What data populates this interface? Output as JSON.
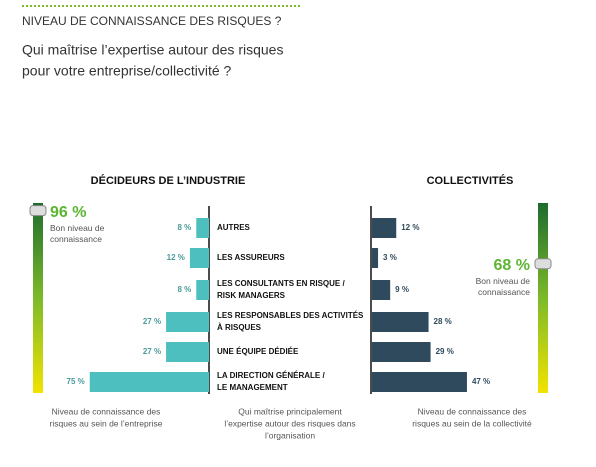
{
  "header": {
    "title": "NIVEAU DE CONNAISSANCE DES RISQUES ?",
    "subtitle": [
      "Qui maîtrise l’expertise autour des risques",
      "pour votre entreprise/collectivité ?"
    ]
  },
  "chart_data": {
    "type": "bar",
    "categories": [
      [
        "AUTRES"
      ],
      [
        "LES ASSUREURS"
      ],
      [
        "LES CONSULTANTS EN RISQUE /",
        "RISK MANAGERS"
      ],
      [
        "LES RESPONSABLES DES ACTIVITÉS",
        "À RISQUES"
      ],
      [
        "UNE ÉQUIPE DÉDIÉE"
      ],
      [
        "LA DIRECTION GÉNÉRALE /",
        "LE MANAGEMENT"
      ]
    ],
    "series": [
      {
        "name": "DÉCIDEURS DE L’INDUSTRIE",
        "color": "#4dbfbf",
        "values": [
          8,
          12,
          8,
          27,
          27,
          75
        ],
        "value_labels": [
          "8 %",
          "12 %",
          "8 %",
          "27 %",
          "27 %",
          "75 %"
        ]
      },
      {
        "name": "COLLECTIVITÉS",
        "color": "#2e4a5c",
        "values": [
          12,
          3,
          9,
          28,
          29,
          47
        ],
        "value_labels": [
          "12 %",
          "3 %",
          "9 %",
          "28 %",
          "29 %",
          "47 %"
        ]
      }
    ],
    "gauges": [
      {
        "value": 96,
        "value_label": "96 %",
        "text": [
          "Bon niveau de",
          "connaissance"
        ]
      },
      {
        "value": 68,
        "value_label": "68 %",
        "text": [
          "Bon niveau de",
          "connaissance"
        ]
      }
    ],
    "notes": [
      [
        "Niveau de connaissance des",
        "risques au sein de l’entreprise"
      ],
      [
        "Qui maîtrise principalement",
        "l’expertise autour des risques dans",
        "l’organisation"
      ],
      [
        "Niveau de connaissance des",
        "risques au sein de la collectivité"
      ]
    ]
  }
}
